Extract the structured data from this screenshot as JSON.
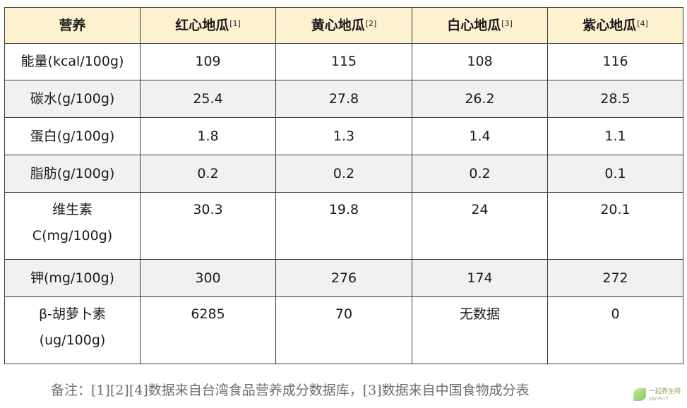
{
  "table": {
    "header": [
      {
        "label": "营养",
        "ref": ""
      },
      {
        "label": "红心地瓜",
        "ref": "[1]"
      },
      {
        "label": "黄心地瓜",
        "ref": "[2]"
      },
      {
        "label": "白心地瓜",
        "ref": "[3]"
      },
      {
        "label": "紫心地瓜",
        "ref": "[4]"
      }
    ],
    "rows": [
      {
        "label": "能量(kcal/100g)",
        "values": [
          "109",
          "115",
          "108",
          "116"
        ]
      },
      {
        "label": "碳水(g/100g)",
        "values": [
          "25.4",
          "27.8",
          "26.2",
          "28.5"
        ]
      },
      {
        "label": "蛋白(g/100g)",
        "values": [
          "1.8",
          "1.3",
          "1.4",
          "1.1"
        ]
      },
      {
        "label": "脂肪(g/100g)",
        "values": [
          "0.2",
          "0.2",
          "0.2",
          "0.1"
        ]
      },
      {
        "label_lines": [
          "维生素",
          "C(mg/100g)"
        ],
        "values": [
          "30.3",
          "19.8",
          "24",
          "20.1"
        ]
      },
      {
        "label": "钾(mg/100g)",
        "values": [
          "300",
          "276",
          "174",
          "272"
        ]
      },
      {
        "label_lines": [
          "β-胡萝卜素",
          "(ug/100g)"
        ],
        "values": [
          "6285",
          "70",
          "无数据",
          "0"
        ]
      }
    ]
  },
  "note": "备注：[1][2][4]数据来自台湾食品营养成分数据库，[3]数据来自中国食物成分表",
  "watermark": {
    "text": "一起养生网",
    "sub": "yqysw.cn",
    "icon": "leaf-logo-icon"
  }
}
